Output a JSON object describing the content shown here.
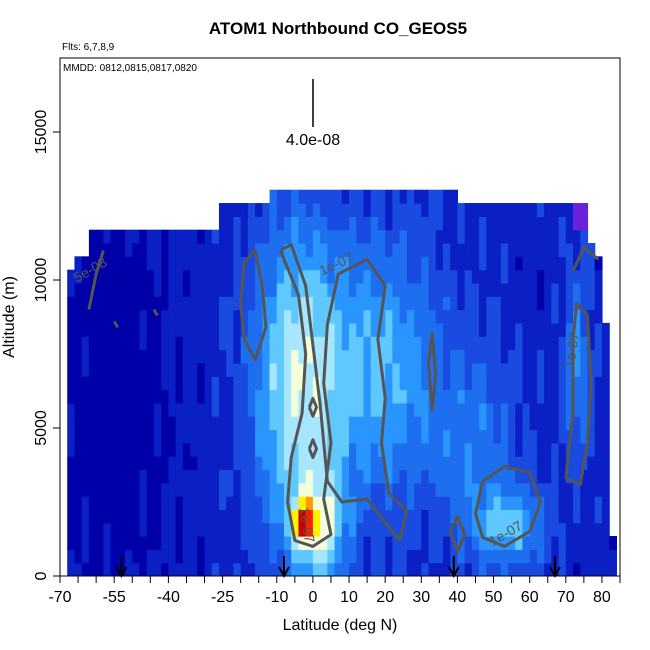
{
  "chart_data": {
    "type": "heatmap",
    "title": "ATOM1 Northbound CO_GEOS5",
    "flights_note": "Flts: 6,7,8,9",
    "dates_note": "MMDD: 0812,0815,0817,0820",
    "xlabel": "Latitude (deg N)",
    "ylabel": "Altitude (m)",
    "xlim": [
      -70,
      85
    ],
    "ylim": [
      0,
      17500
    ],
    "x_ticks": [
      -70,
      -55,
      -40,
      -25,
      -10,
      0,
      10,
      20,
      30,
      40,
      50,
      60,
      70,
      80
    ],
    "x_tick_labels": [
      "-70",
      "-55",
      "-40",
      "-25",
      "-10",
      "0",
      "10",
      "20",
      "30",
      "40",
      "50",
      "60",
      "70",
      "80"
    ],
    "y_ticks": [
      0,
      5000,
      10000,
      15000
    ],
    "y_tick_labels": [
      "0",
      "5000",
      "10000",
      "15000"
    ],
    "scale_bar_label": "4.0e-08",
    "contour_labels": [
      {
        "text": "5e-08",
        "x": -61,
        "y": 10200,
        "angle": -30
      },
      {
        "text": "1e-07",
        "x": 7,
        "y": 10400,
        "angle": -25
      },
      {
        "text": "1e-07",
        "x": 73,
        "y": 7600,
        "angle": -80
      },
      {
        "text": "1e-07",
        "x": 54,
        "y": 1300,
        "angle": -30
      },
      {
        "text": "1e-07",
        "x": -3,
        "y": 1700,
        "angle": 80
      }
    ],
    "profile_arrows_latitude": [
      -53,
      -8,
      39,
      67
    ],
    "color_scale": [
      "#0000a8",
      "#0a1fc4",
      "#1a4be0",
      "#1e6ff0",
      "#2a95ff",
      "#5ec8ff",
      "#a6e6ff",
      "#f2ffd8",
      "#fff200",
      "#ff9a00",
      "#ff2000",
      "#c80000"
    ],
    "grid": false,
    "legend": "none"
  }
}
